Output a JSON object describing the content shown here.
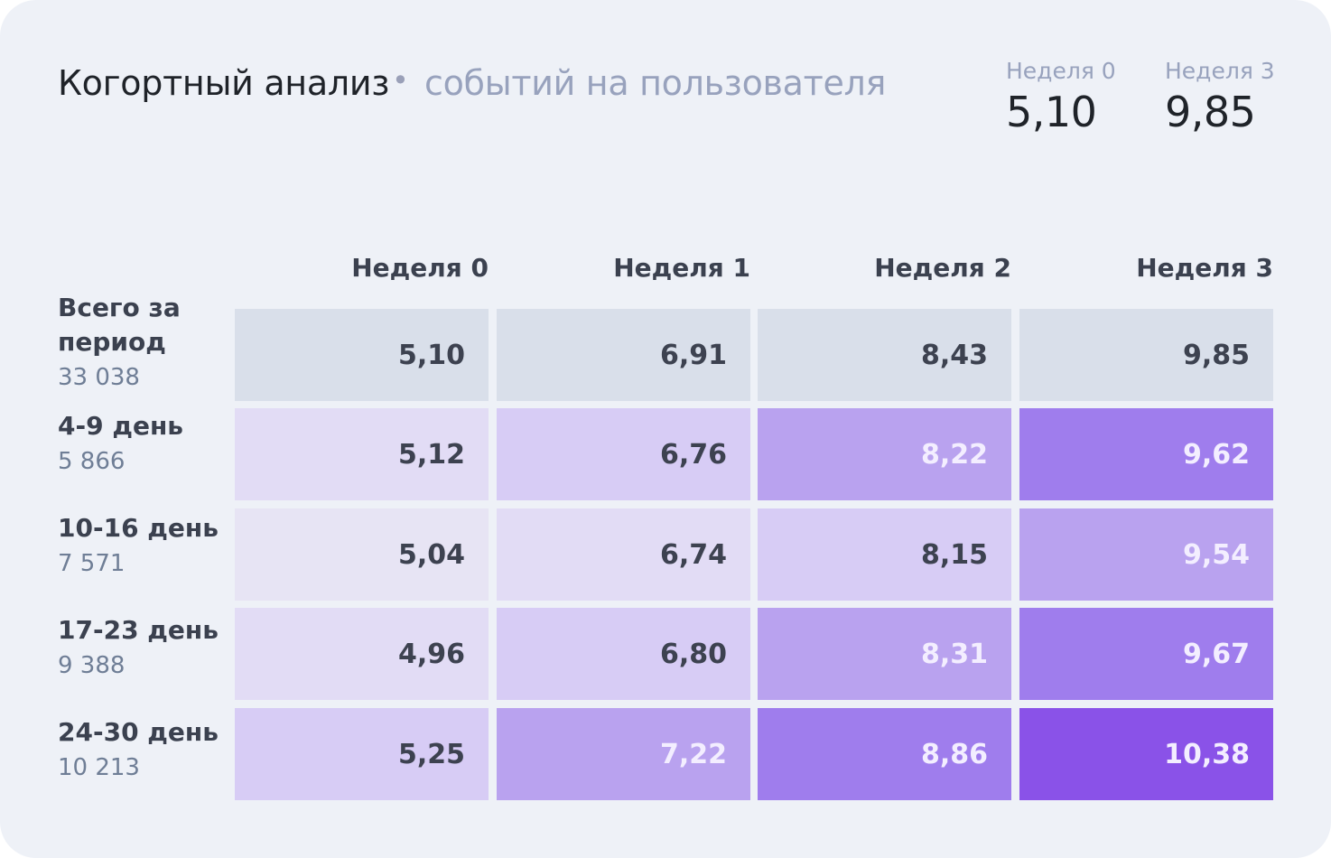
{
  "header": {
    "title": "Когортный анализ",
    "separator": "•",
    "subtitle": "событий на пользователя"
  },
  "summary": [
    {
      "label": "Неделя 0",
      "value": "5,10"
    },
    {
      "label": "Неделя 3",
      "value": "9,85"
    }
  ],
  "chart_data": {
    "type": "heatmap",
    "columns": [
      "Неделя 0",
      "Неделя 1",
      "Неделя 2",
      "Неделя 3"
    ],
    "rows": [
      {
        "name": "Всего за период",
        "count": "33 038",
        "values": [
          "5,10",
          "6,91",
          "8,43",
          "9,85"
        ]
      },
      {
        "name": "4-9 день",
        "count": "5 866",
        "values": [
          "5,12",
          "6,76",
          "8,22",
          "9,62"
        ]
      },
      {
        "name": "10-16 день",
        "count": "7 571",
        "values": [
          "5,04",
          "6,74",
          "8,15",
          "9,54"
        ]
      },
      {
        "name": "17-23 день",
        "count": "9 388",
        "values": [
          "4,96",
          "6,80",
          "8,31",
          "9,67"
        ]
      },
      {
        "name": "24-30 день",
        "count": "10 213",
        "values": [
          "5,25",
          "7,22",
          "8,86",
          "10,38"
        ]
      }
    ],
    "total_row_color": "#d9dfea",
    "color_scale": [
      "#e7e4f4",
      "#e2dcf5",
      "#d7ccf5",
      "#b9a2ef",
      "#9f7ded",
      "#8a52e8"
    ]
  }
}
